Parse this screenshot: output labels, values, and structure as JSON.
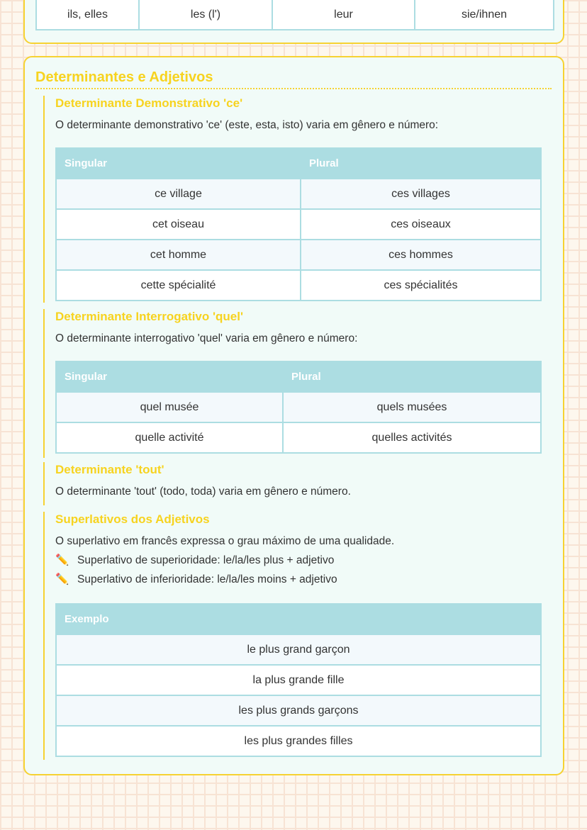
{
  "top_table": {
    "row": [
      "ils, elles",
      "les (l')",
      "leur",
      "sie/ihnen"
    ]
  },
  "section": {
    "title": "Determinantes e Adjetivos",
    "demonstrativo": {
      "heading": "Determinante Demonstrativo 'ce'",
      "text": "O determinante demonstrativo 'ce' (este, esta, isto) varia em gênero e número:",
      "headers": [
        "Singular",
        "Plural"
      ],
      "rows": [
        [
          "ce village",
          "ces villages"
        ],
        [
          "cet oiseau",
          "ces oiseaux"
        ],
        [
          "cet homme",
          "ces hommes"
        ],
        [
          "cette spécialité",
          "ces spécialités"
        ]
      ]
    },
    "interrogativo": {
      "heading": "Determinante Interrogativo 'quel'",
      "text": "O determinante interrogativo 'quel' varia em gênero e número:",
      "headers": [
        "Singular",
        "Plural"
      ],
      "rows": [
        [
          "quel musée",
          "quels musées"
        ],
        [
          "quelle activité",
          "quelles activités"
        ]
      ]
    },
    "tout": {
      "heading": "Determinante 'tout'",
      "text": "O determinante 'tout' (todo, toda) varia em gênero e número."
    },
    "superlativos": {
      "heading": "Superlativos dos Adjetivos",
      "text": "O superlativo em francês expressa o grau máximo de uma qualidade.",
      "bullets": [
        {
          "icon": "pencil-icon",
          "text": "Superlativo de superioridade: le/la/les plus + adjetivo"
        },
        {
          "icon": "pencil-icon",
          "text": "Superlativo de inferioridade: le/la/les moins + adjetivo"
        }
      ],
      "header": "Exemplo",
      "rows": [
        "le plus grand garçon",
        "la plus grande fille",
        "les plus grands garçons",
        "les plus grandes filles"
      ]
    }
  },
  "colors": {
    "accent": "#f7d31f",
    "table_header": "#acdde2",
    "card_bg": "#f1fbf8"
  }
}
